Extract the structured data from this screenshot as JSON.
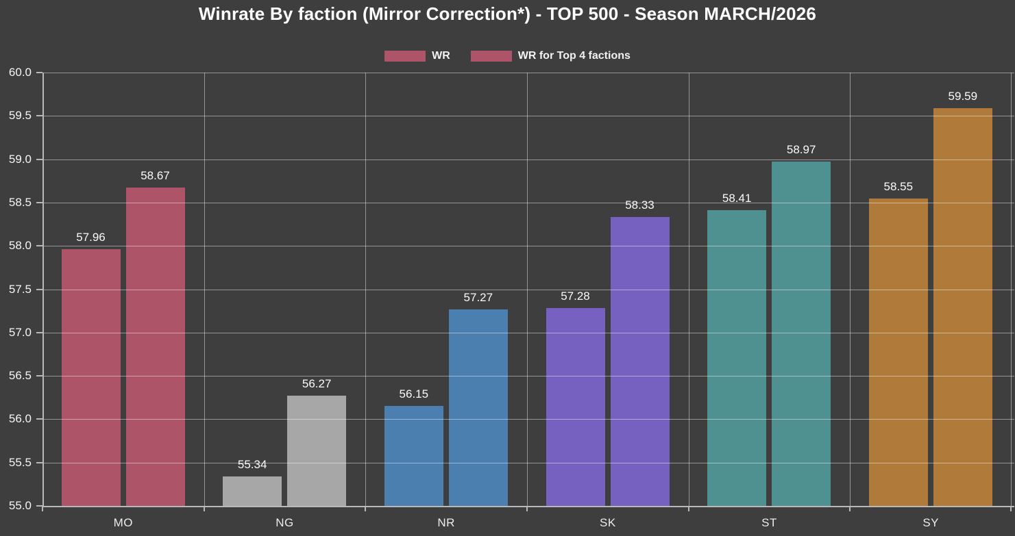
{
  "title": "Winrate By faction (Mirror Correction*) - TOP 500 - Season MARCH/2026",
  "legend": [
    {
      "label": "WR",
      "swatch_color": "#ad5468"
    },
    {
      "label": "WR for Top 4 factions",
      "swatch_color": "#ad5468"
    }
  ],
  "colors": {
    "background": "#3e3e3e",
    "grid": "rgba(255,255,255,0.45)",
    "axis": "#b9b9b9",
    "title_text": "#ffffff",
    "tick_text": "#f5f5f5",
    "value_text": "#fafafa"
  },
  "chart_data": {
    "type": "bar",
    "title": "Winrate By faction (Mirror Correction*) - TOP 500 - Season MARCH/2026",
    "categories": [
      "MO",
      "NG",
      "NR",
      "SK",
      "ST",
      "SY"
    ],
    "series": [
      {
        "name": "WR",
        "values": [
          57.96,
          55.34,
          56.15,
          57.28,
          58.41,
          58.55
        ]
      },
      {
        "name": "WR for Top 4 factions",
        "values": [
          58.67,
          56.27,
          57.27,
          58.33,
          58.97,
          59.59
        ]
      }
    ],
    "category_colors": {
      "MO": "#ad5468",
      "NG": "#a7a7a7",
      "NR": "#4a7fb0",
      "SK": "#7661c0",
      "ST": "#4f9191",
      "SY": "#b07a3a"
    },
    "ylim": [
      55.0,
      60.0
    ],
    "ytick_step": 0.5,
    "ytick_format_decimals": 1,
    "value_label_decimals": 2,
    "grid": true,
    "legend_position": "top-center",
    "xlabel": "",
    "ylabel": ""
  }
}
